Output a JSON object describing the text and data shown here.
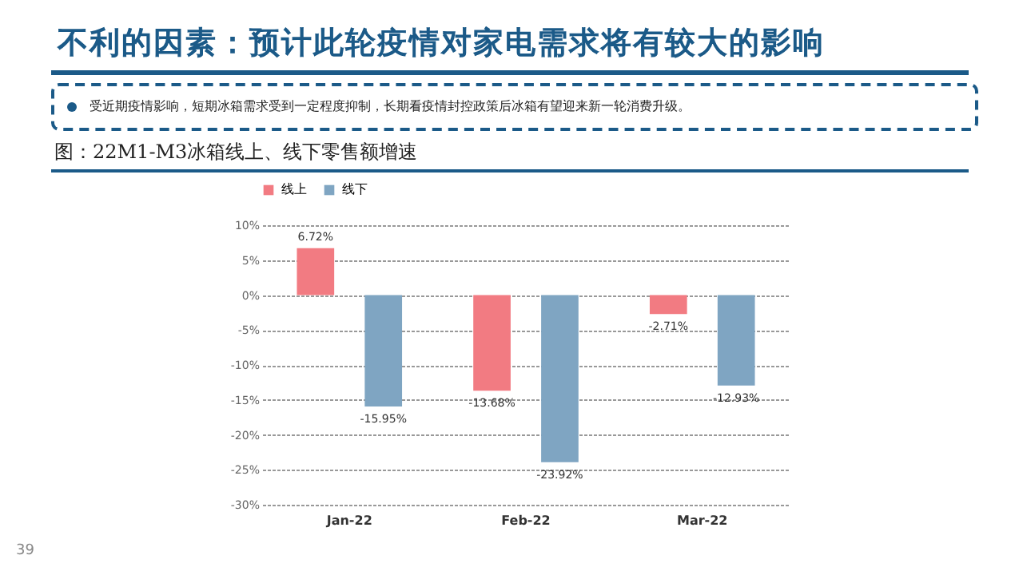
{
  "chart_data": {
    "type": "bar",
    "title": "不利的因素：预计此轮疫情对家电需求将有较大的影响",
    "subtitle": "图：22M1-M3冰箱线上、线下零售额增速",
    "annotations": [
      "受近期疫情影响，短期冰箱需求受到一定程度抑制，长期看疫情封控政策后冰箱有望迎来新一轮消费升级。",
      "39"
    ],
    "categories": [
      "Jan-22",
      "Feb-22",
      "Mar-22"
    ],
    "series": [
      {
        "name": "线上",
        "color": "#f27b82",
        "values": [
          6.72,
          -13.68,
          -2.71
        ],
        "value_labels": [
          "6.72%",
          "-13.68%",
          "-2.71%"
        ]
      },
      {
        "name": "线下",
        "color": "#7fa5c2",
        "values": [
          -15.95,
          -23.92,
          -12.93
        ],
        "value_labels": [
          "-15.95%",
          "-23.92%",
          "-12.93%"
        ]
      }
    ],
    "ylim": [
      -30,
      10
    ],
    "yticks": [
      {
        "value": 10,
        "label": "10%"
      },
      {
        "value": 5,
        "label": "5%"
      },
      {
        "value": 0,
        "label": "0%"
      },
      {
        "value": -5,
        "label": "-5%"
      },
      {
        "value": -10,
        "label": "-10%"
      },
      {
        "value": -15,
        "label": "-15%"
      },
      {
        "value": -20,
        "label": "-20%"
      },
      {
        "value": -25,
        "label": "-25%"
      },
      {
        "value": -30,
        "label": "-30%"
      }
    ],
    "grid": "y",
    "legend": "top"
  }
}
